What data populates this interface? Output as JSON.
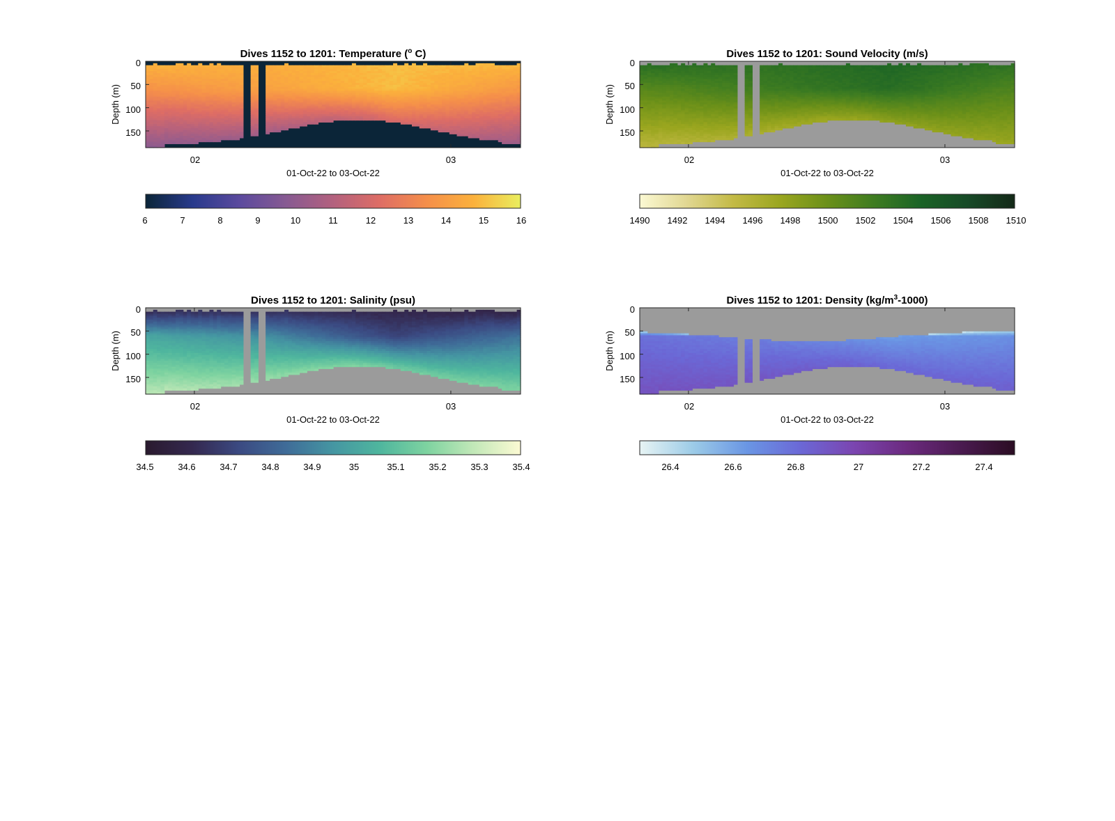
{
  "chart_data": [
    {
      "type": "heatmap",
      "variable": "temperature",
      "title": "Dives 1152 to 1201: Temperature (",
      "title_superscript": "o",
      "title_suffix": " C)",
      "xlabel": "01-Oct-22 to 03-Oct-22",
      "ylabel": "Depth (m)",
      "x_ticks": [
        "02",
        "03"
      ],
      "y_ticks": [
        0,
        50,
        100,
        150
      ],
      "ylim": [
        0,
        186
      ],
      "y_reversed": true,
      "no_data_color": "#0b2538",
      "colorbar": {
        "ticks": [
          "6",
          "7",
          "8",
          "9",
          "10",
          "11",
          "12",
          "13",
          "14",
          "15",
          "16"
        ],
        "range": [
          6,
          16
        ],
        "colors": [
          "#0b2538",
          "#283a8c",
          "#5b4a9e",
          "#875a92",
          "#b3617e",
          "#de6d65",
          "#f58f4a",
          "#fbb13c",
          "#e9ee5e"
        ]
      },
      "values": {
        "surface": [
          14.8,
          14.6,
          15.0,
          14.9
        ],
        "mid": [
          13.6,
          14.2,
          15.0,
          13.8
        ],
        "deep": [
          9.9,
          10.5,
          12.0,
          10.3
        ]
      },
      "gap_dives": [
        [
          0.26,
          0.28
        ],
        [
          0.3,
          0.32
        ]
      ]
    },
    {
      "type": "heatmap",
      "variable": "sound_velocity",
      "title": "Dives 1152 to 1201: Sound Velocity (m/s)",
      "title_superscript": "",
      "title_suffix": "",
      "xlabel": "01-Oct-22 to 03-Oct-22",
      "ylabel": "Depth (m)",
      "x_ticks": [
        "02",
        "03"
      ],
      "y_ticks": [
        0,
        50,
        100,
        150
      ],
      "ylim": [
        0,
        186
      ],
      "y_reversed": true,
      "no_data_color": "#9b9b9b",
      "colorbar": {
        "ticks": [
          "1490",
          "1492",
          "1494",
          "1496",
          "1498",
          "1500",
          "1502",
          "1504",
          "1506",
          "1508",
          "1510"
        ],
        "range": [
          1490,
          1510
        ],
        "colors": [
          "#fbf9d3",
          "#e1d792",
          "#c3ba45",
          "#9aa61f",
          "#6b9019",
          "#3e7c21",
          "#1a6326",
          "#174a27",
          "#142918"
        ]
      },
      "values": {
        "surface": [
          1504,
          1503.5,
          1504.5,
          1503.5
        ],
        "mid": [
          1501,
          1502.5,
          1504,
          1501.5
        ],
        "deep": [
          1495.5,
          1496.5,
          1498,
          1497.5
        ]
      },
      "gap_dives": [
        [
          0.26,
          0.28
        ],
        [
          0.3,
          0.32
        ]
      ]
    },
    {
      "type": "heatmap",
      "variable": "salinity",
      "title": "Dives 1152 to 1201: Salinity (psu)",
      "title_superscript": "",
      "title_suffix": "",
      "xlabel": "01-Oct-22 to 03-Oct-22",
      "ylabel": "Depth (m)",
      "x_ticks": [
        "02",
        "03"
      ],
      "y_ticks": [
        0,
        50,
        100,
        150
      ],
      "ylim": [
        0,
        186
      ],
      "y_reversed": true,
      "no_data_color": "#9b9b9b",
      "colorbar": {
        "ticks": [
          "34.5",
          "34.6",
          "34.7",
          "34.8",
          "34.9",
          "35",
          "35.1",
          "35.2",
          "35.3",
          "35.4"
        ],
        "range": [
          34.5,
          35.4
        ],
        "colors": [
          "#2a1a2e",
          "#34284f",
          "#3b4a82",
          "#3f6c98",
          "#4596a2",
          "#4fb69e",
          "#7ed3a0",
          "#c2e8b8",
          "#fcfad3"
        ]
      },
      "values": {
        "surface": [
          34.62,
          34.64,
          34.6,
          34.58
        ],
        "mid": [
          35.0,
          34.92,
          34.7,
          34.85
        ],
        "deep": [
          35.28,
          35.22,
          35.15,
          35.18
        ]
      },
      "gap_dives": [
        [
          0.26,
          0.28
        ],
        [
          0.3,
          0.32
        ]
      ]
    },
    {
      "type": "heatmap",
      "variable": "density",
      "title": "Dives 1152 to 1201: Density (kg/m",
      "title_superscript": "3",
      "title_suffix": "-1000)",
      "xlabel": "01-Oct-22 to 03-Oct-22",
      "ylabel": "Depth (m)",
      "x_ticks": [
        "02",
        "03"
      ],
      "y_ticks": [
        0,
        50,
        100,
        150
      ],
      "ylim": [
        0,
        186
      ],
      "y_reversed": true,
      "no_data_color": "#9b9b9b",
      "colorbar": {
        "ticks": [
          "26.4",
          "26.6",
          "26.8",
          "27",
          "27.2",
          "27.4"
        ],
        "range": [
          26.3,
          27.5
        ],
        "colors": [
          "#e7f4f4",
          "#9ccbe7",
          "#6a96e4",
          "#6b68d6",
          "#7b45b0",
          "#6b2a7e",
          "#4a1a50",
          "#2b0d23"
        ]
      },
      "values": {
        "surface": [
          26.5,
          26.48,
          26.36,
          26.4
        ],
        "mid": [
          26.78,
          26.72,
          26.62,
          26.66
        ],
        "deep": [
          26.92,
          26.9,
          26.82,
          26.86
        ]
      },
      "gap_dives": [
        [
          0.26,
          0.28
        ],
        [
          0.3,
          0.32
        ]
      ]
    }
  ]
}
